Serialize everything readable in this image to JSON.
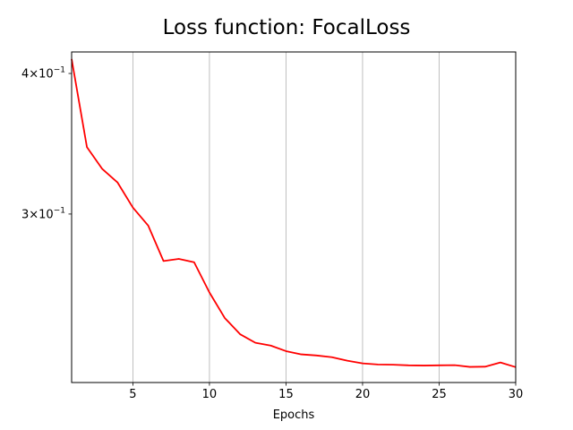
{
  "chart_data": {
    "type": "line",
    "title": "Loss function: FocalLoss",
    "xlabel": "Epochs",
    "ylabel": "",
    "y_scale": "log",
    "xlim": [
      1,
      30
    ],
    "ylim": [
      0.2125,
      0.418
    ],
    "x_ticks": [
      5,
      10,
      15,
      20,
      25,
      30
    ],
    "x_tick_labels": [
      "5",
      "10",
      "15",
      "20",
      "25",
      "30"
    ],
    "y_ticks": [
      0.4,
      0.3
    ],
    "y_tick_labels": [
      {
        "base": "4×10",
        "exp": "−1"
      },
      {
        "base": "3×10",
        "exp": "−1"
      }
    ],
    "grid": "vertical",
    "series": [
      {
        "color": "#ff0000",
        "x": [
          1,
          2,
          3,
          4,
          5,
          6,
          7,
          8,
          9,
          10,
          11,
          12,
          13,
          14,
          15,
          16,
          17,
          18,
          19,
          20,
          21,
          22,
          23,
          24,
          25,
          26,
          27,
          28,
          29,
          30
        ],
        "y": [
          0.412,
          0.344,
          0.329,
          0.32,
          0.304,
          0.293,
          0.2725,
          0.2737,
          0.2718,
          0.2555,
          0.2425,
          0.2346,
          0.2305,
          0.2292,
          0.2266,
          0.2251,
          0.2246,
          0.2238,
          0.2222,
          0.221,
          0.2205,
          0.2204,
          0.2201,
          0.22,
          0.2201,
          0.2202,
          0.2194,
          0.2195,
          0.2214,
          0.2193
        ]
      }
    ]
  }
}
